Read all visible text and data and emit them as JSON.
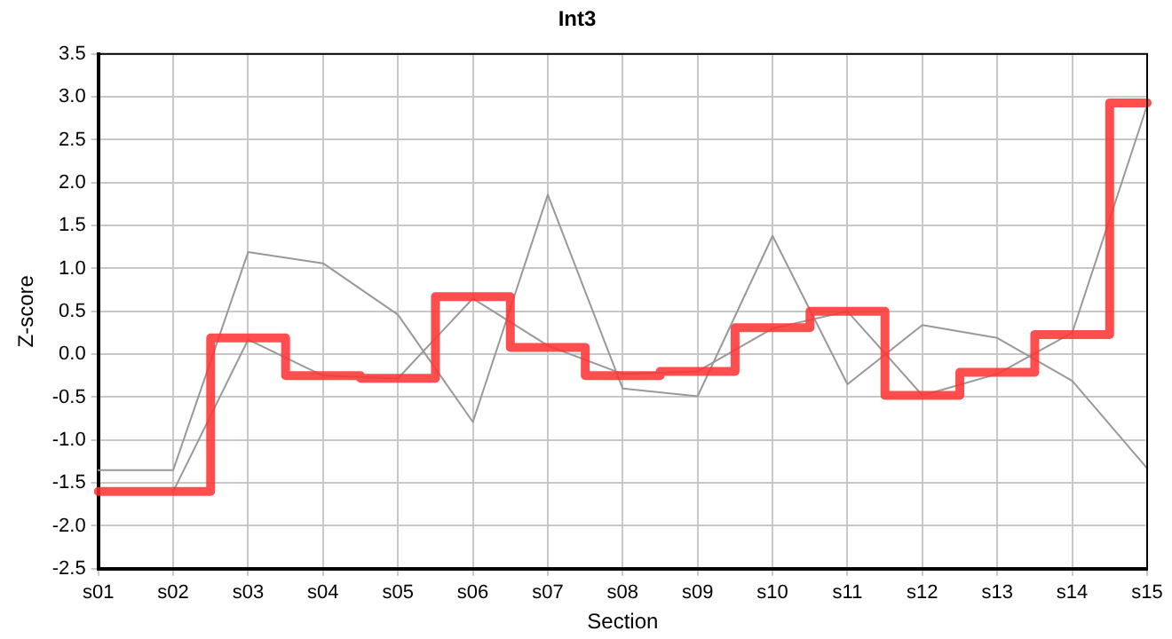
{
  "chart_data": {
    "type": "line",
    "title": "Int3",
    "xlabel": "Section",
    "ylabel": "Z-score",
    "categories": [
      "s01",
      "s02",
      "s03",
      "s04",
      "s05",
      "s06",
      "s07",
      "s08",
      "s09",
      "s10",
      "s11",
      "s12",
      "s13",
      "s14",
      "s15"
    ],
    "series": [
      {
        "type": "line",
        "color": "#999999",
        "values": [
          -1.35,
          -1.35,
          1.19,
          1.06,
          0.46,
          -0.79,
          1.86,
          -0.4,
          -0.49,
          1.38,
          -0.35,
          0.34,
          0.19,
          -0.31,
          -1.33
        ]
      },
      {
        "type": "line",
        "color": "#999999",
        "values": [
          null,
          -1.6,
          0.17,
          -0.25,
          -0.28,
          0.65,
          0.1,
          -0.23,
          -0.2,
          0.3,
          0.5,
          -0.48,
          -0.23,
          0.25,
          2.9
        ]
      },
      {
        "type": "step",
        "color": "#ff3333",
        "values": [
          -1.6,
          -1.6,
          0.19,
          -0.25,
          -0.28,
          0.67,
          0.08,
          -0.25,
          -0.2,
          0.31,
          0.5,
          -0.48,
          -0.21,
          0.23,
          2.93
        ]
      }
    ],
    "ylim": [
      -2.5,
      3.5
    ],
    "yticks": [
      {
        "value": -2.5,
        "label": "-2.5"
      },
      {
        "value": -2,
        "label": "-2.0"
      },
      {
        "value": -1.5,
        "label": "-1.5"
      },
      {
        "value": -1,
        "label": "-1.0"
      },
      {
        "value": -0.5,
        "label": "-0.5"
      },
      {
        "value": 0,
        "label": "0.0"
      },
      {
        "value": 0.5,
        "label": "0.5"
      },
      {
        "value": 1,
        "label": "1.0"
      },
      {
        "value": 1.5,
        "label": "1.5"
      },
      {
        "value": 2,
        "label": "2.0"
      },
      {
        "value": 2.5,
        "label": "2.5"
      },
      {
        "value": 3,
        "label": "3.0"
      },
      {
        "value": 3.5,
        "label": "3.5"
      }
    ],
    "grid": true,
    "legend": false,
    "marker": "none",
    "line_style": "solid"
  }
}
